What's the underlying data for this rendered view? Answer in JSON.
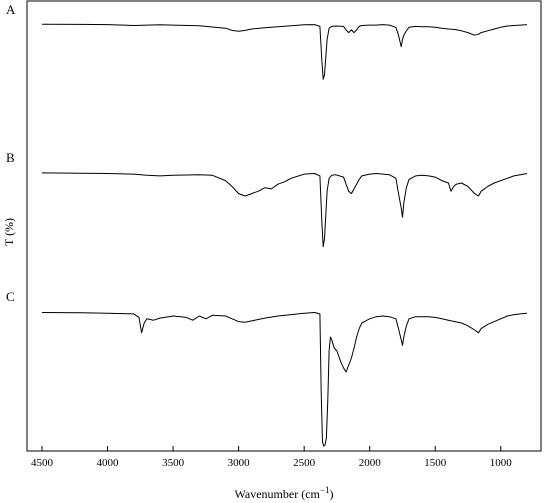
{
  "chart_data": {
    "type": "line",
    "xlabel": "Wavenumber (cm",
    "xlabel_sup": "−1",
    "xlabel_close": ")",
    "ylabel": "T (%)",
    "xlim": [
      4500,
      800
    ],
    "x_ticks": [
      4500,
      4000,
      3500,
      3000,
      2500,
      2000,
      1500,
      1000
    ],
    "x_tick_labels": [
      "4500",
      "4000",
      "3500",
      "3000",
      "2500",
      "2000",
      "1500",
      "1000"
    ],
    "grid": false,
    "series": [
      {
        "name": "A",
        "x": [
          4500,
          4200,
          4000,
          3800,
          3700,
          3600,
          3500,
          3300,
          3100,
          3050,
          3000,
          2950,
          2900,
          2800,
          2700,
          2600,
          2500,
          2420,
          2380,
          2365,
          2355,
          2345,
          2335,
          2325,
          2310,
          2290,
          2260,
          2200,
          2180,
          2160,
          2140,
          2120,
          2100,
          2080,
          2060,
          2000,
          1950,
          1900,
          1850,
          1800,
          1780,
          1760,
          1750,
          1740,
          1720,
          1700,
          1650,
          1600,
          1550,
          1500,
          1450,
          1400,
          1350,
          1300,
          1250,
          1200,
          1170,
          1150,
          1100,
          1050,
          1000,
          950,
          900,
          850,
          800
        ],
        "y": [
          97.5,
          97.3,
          97,
          96,
          96.5,
          96.8,
          96.5,
          95.8,
          93,
          90.5,
          89.5,
          90.5,
          92,
          93.5,
          94.5,
          95.8,
          96.8,
          97,
          95,
          55,
          35,
          40,
          60,
          80,
          93,
          95,
          95.5,
          95,
          91,
          88,
          91,
          88,
          91,
          95,
          96,
          96.5,
          96.5,
          97,
          96.5,
          94,
          85,
          72,
          80,
          85,
          90,
          94,
          95,
          94.5,
          94.5,
          94,
          93,
          92,
          91.5,
          90,
          88,
          85,
          86,
          88,
          90,
          92,
          94,
          95.5,
          96,
          96.5,
          97
        ]
      },
      {
        "name": "B",
        "x": [
          4500,
          4200,
          4000,
          3800,
          3700,
          3600,
          3500,
          3300,
          3200,
          3100,
          3050,
          3000,
          2950,
          2900,
          2850,
          2800,
          2750,
          2700,
          2650,
          2600,
          2500,
          2420,
          2380,
          2365,
          2355,
          2345,
          2335,
          2325,
          2310,
          2290,
          2260,
          2200,
          2180,
          2160,
          2140,
          2120,
          2100,
          2080,
          2060,
          2000,
          1950,
          1900,
          1850,
          1800,
          1780,
          1760,
          1750,
          1740,
          1720,
          1700,
          1650,
          1600,
          1550,
          1500,
          1450,
          1400,
          1380,
          1360,
          1340,
          1300,
          1250,
          1200,
          1170,
          1150,
          1100,
          1050,
          1000,
          950,
          900,
          850,
          800
        ],
        "y": [
          97.5,
          97.3,
          97,
          96.5,
          95.5,
          95,
          95.5,
          96,
          95.5,
          91,
          86,
          80,
          78,
          80,
          82,
          85,
          84,
          88,
          90,
          93,
          96.5,
          97,
          95,
          55,
          35,
          42,
          62,
          82,
          93,
          95.5,
          96,
          94,
          88,
          82,
          80,
          84,
          88,
          92,
          95,
          96.5,
          97,
          96.5,
          96,
          93,
          80,
          68,
          60,
          72,
          85,
          92,
          95,
          95.5,
          95,
          94,
          91,
          89,
          82,
          86,
          88,
          89,
          86,
          80,
          78,
          82,
          86,
          89,
          91,
          93,
          95,
          96,
          97
        ]
      },
      {
        "name": "C",
        "x": [
          4500,
          4200,
          4000,
          3800,
          3760,
          3740,
          3720,
          3700,
          3650,
          3600,
          3500,
          3400,
          3350,
          3300,
          3250,
          3200,
          3100,
          3050,
          3000,
          2950,
          2900,
          2800,
          2700,
          2600,
          2500,
          2420,
          2380,
          2370,
          2360,
          2350,
          2340,
          2330,
          2320,
          2310,
          2300,
          2290,
          2270,
          2250,
          2220,
          2200,
          2180,
          2160,
          2140,
          2120,
          2100,
          2080,
          2060,
          2000,
          1950,
          1900,
          1850,
          1800,
          1780,
          1760,
          1750,
          1740,
          1720,
          1700,
          1650,
          1600,
          1550,
          1500,
          1450,
          1400,
          1350,
          1300,
          1250,
          1200,
          1170,
          1150,
          1100,
          1050,
          1000,
          950,
          900,
          850,
          800
        ],
        "y": [
          97.5,
          97.3,
          97,
          96.5,
          94,
          83,
          90,
          93,
          92,
          93.5,
          95,
          94,
          92,
          95,
          93,
          95.5,
          95,
          93,
          91,
          90.5,
          91.5,
          93.5,
          95,
          96,
          97,
          97.5,
          96.5,
          40,
          5,
          2,
          3,
          8,
          35,
          70,
          80,
          78,
          72,
          70,
          62,
          58,
          55,
          60,
          65,
          72,
          80,
          86,
          90,
          93,
          94.5,
          95,
          94.5,
          93,
          86,
          78,
          74,
          80,
          88,
          93,
          94.5,
          94.5,
          94.5,
          94,
          93,
          92,
          91,
          90,
          88,
          85,
          83,
          86,
          89,
          91,
          93,
          95,
          96,
          96.5,
          97
        ]
      }
    ]
  }
}
